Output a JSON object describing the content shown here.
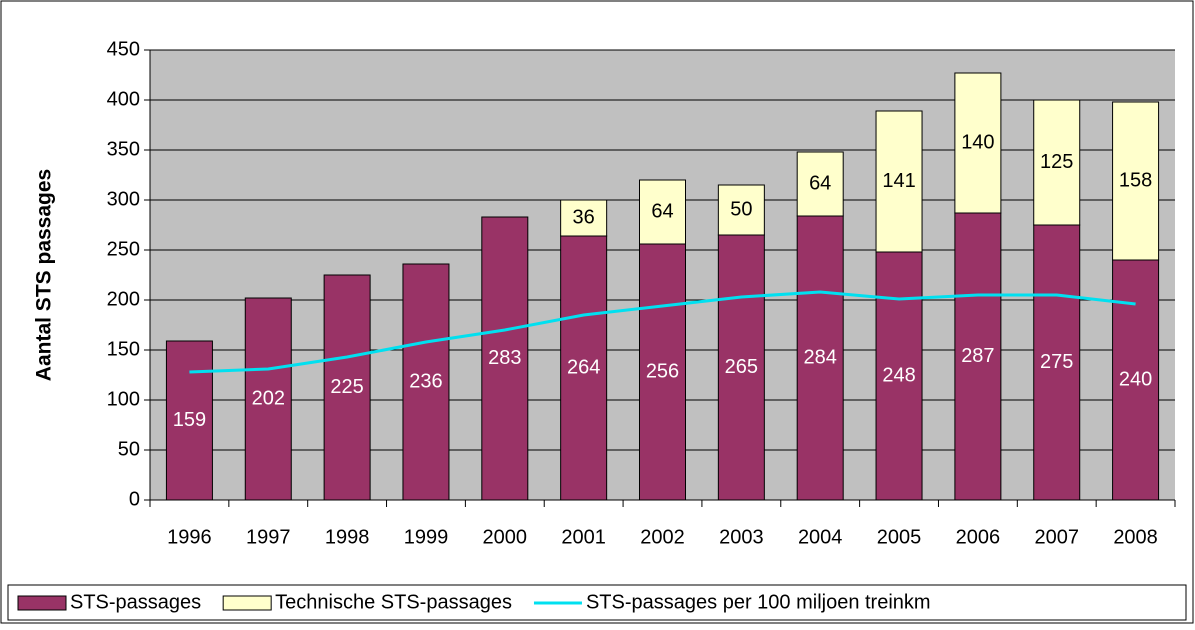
{
  "chart_data": {
    "type": "stacked-bar-line",
    "y_axis_label": "Aantal STS passages",
    "categories": [
      "1996",
      "1997",
      "1998",
      "1999",
      "2000",
      "2001",
      "2002",
      "2003",
      "2004",
      "2005",
      "2006",
      "2007",
      "2008"
    ],
    "series": [
      {
        "name": "STS-passages",
        "type": "bar",
        "color": "#993366",
        "label_color": "#ffffff",
        "values": [
          159,
          202,
          225,
          236,
          283,
          264,
          256,
          265,
          284,
          248,
          287,
          275,
          240
        ]
      },
      {
        "name": "Technische STS-passages",
        "type": "bar",
        "color": "#ffffcc",
        "label_color": "#000000",
        "values": [
          null,
          null,
          null,
          null,
          null,
          36,
          64,
          50,
          64,
          141,
          140,
          125,
          158
        ]
      },
      {
        "name": "STS-passages per 100 miljoen treinkm",
        "type": "line",
        "color": "#00e0f0",
        "values": [
          128,
          131,
          143,
          158,
          170,
          185,
          194,
          203,
          208,
          201,
          205,
          205,
          196
        ]
      }
    ],
    "ylim": [
      0,
      450
    ],
    "yticks": [
      0,
      50,
      100,
      150,
      200,
      250,
      300,
      350,
      400,
      450
    ],
    "grid": true,
    "legend": "bottom"
  }
}
